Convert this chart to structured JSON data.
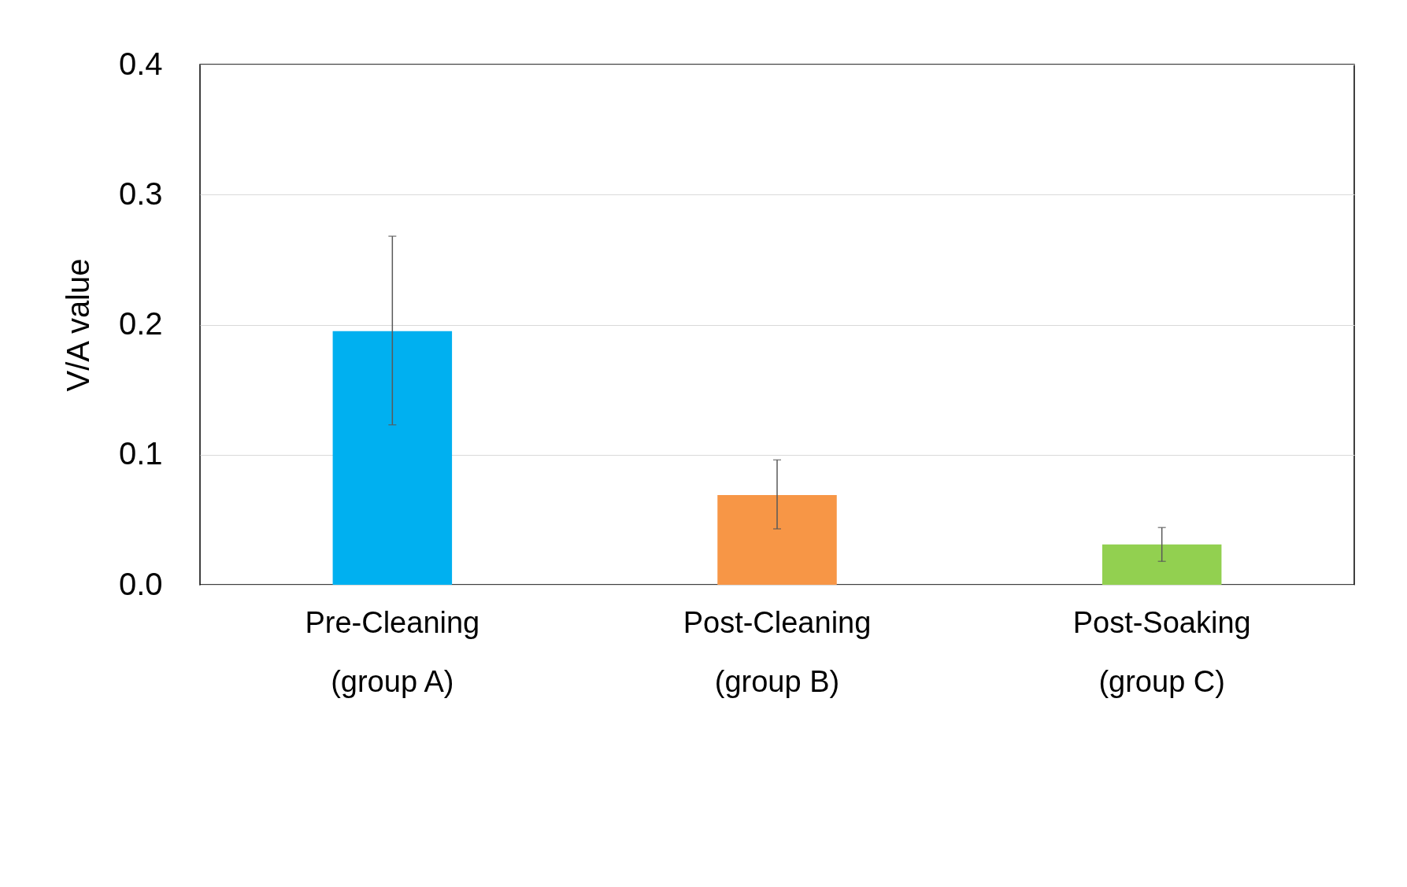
{
  "chart_data": {
    "type": "bar",
    "ylabel": "V/A value",
    "categories": [
      "Pre-Cleaning\n(group A)",
      "Post-Cleaning\n(group B)",
      "Post-Soaking\n(group C)"
    ],
    "values": [
      0.195,
      0.069,
      0.031
    ],
    "colors": [
      "#00b0f0",
      "#f79646",
      "#92d050"
    ],
    "errors": [
      [
        0.123,
        0.268
      ],
      [
        0.043,
        0.096
      ],
      [
        0.018,
        0.044
      ]
    ],
    "ylim": [
      0,
      0.4
    ],
    "yticks": [
      {
        "value": 0,
        "label": "0.0"
      },
      {
        "value": 0.1,
        "label": "0.1"
      },
      {
        "value": 0.2,
        "label": "0.2"
      },
      {
        "value": 0.3,
        "label": "0.3"
      },
      {
        "value": 0.4,
        "label": "0.4"
      }
    ],
    "grid": true,
    "legend": false
  }
}
